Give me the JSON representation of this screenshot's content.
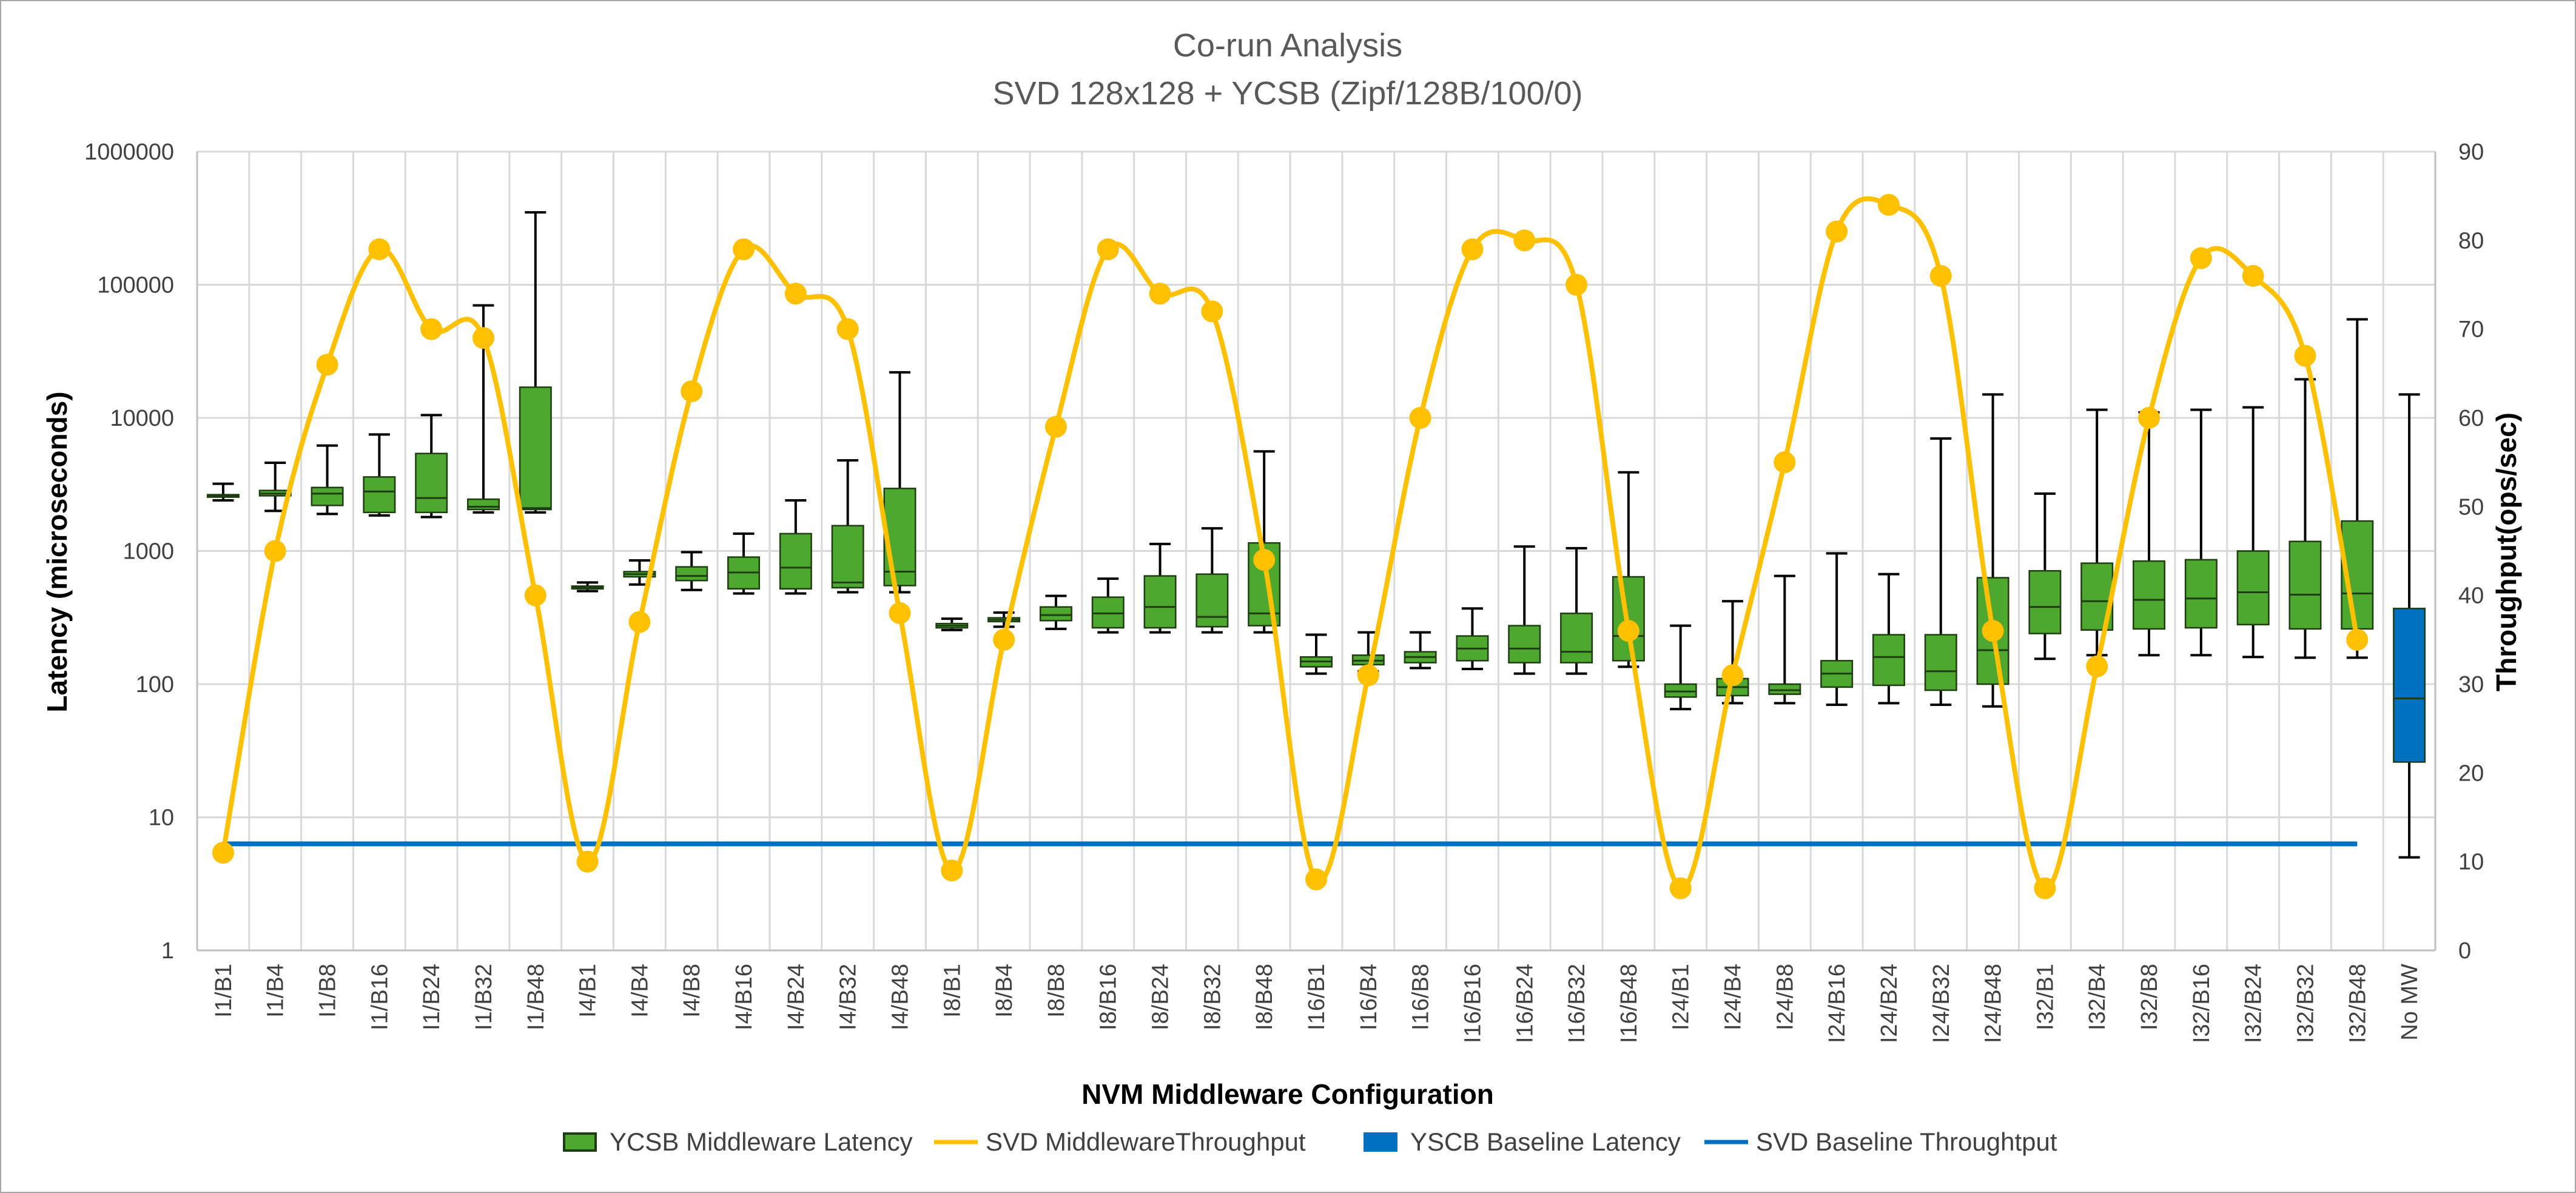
{
  "chart_data": {
    "type": "box+line",
    "title": "Co-run Analysis",
    "subtitle": "SVD 128x128 + YCSB (Zipf/128B/100/0)",
    "xlabel": "NVM Middleware Configuration",
    "ylabel_left": "Latency (microseconds)",
    "ylabel_right": "Throughput(ops/sec)",
    "y_left_scale": "log",
    "y_left_range": [
      1,
      1000000
    ],
    "y_left_ticks": [
      "1",
      "10",
      "100",
      "1000",
      "10000",
      "100000",
      "1000000"
    ],
    "y_right_range": [
      0,
      90
    ],
    "y_right_ticks": [
      "0",
      "10",
      "20",
      "30",
      "40",
      "50",
      "60",
      "70",
      "80",
      "90"
    ],
    "grid": true,
    "legend_position": "bottom",
    "colors": {
      "ycsb_box": "#4ea72e",
      "ycsb_box_border": "#1f3d12",
      "svd_line": "#ffc000",
      "baseline_box": "#0070c0",
      "baseline_line": "#0070c0",
      "grid": "#d9d9d9",
      "whisker": "#000000"
    },
    "categories": [
      "I1/B1",
      "I1/B4",
      "I1/B8",
      "I1/B16",
      "I1/B24",
      "I1/B32",
      "I1/B48",
      "I4/B1",
      "I4/B4",
      "I4/B8",
      "I4/B16",
      "I4/B24",
      "I4/B32",
      "I4/B48",
      "I8/B1",
      "I8/B4",
      "I8/B8",
      "I8/B16",
      "I8/B24",
      "I8/B32",
      "I8/B48",
      "I16/B1",
      "I16/B4",
      "I16/B8",
      "I16/B16",
      "I16/B24",
      "I16/B32",
      "I16/B48",
      "I24/B1",
      "I24/B4",
      "I24/B8",
      "I24/B16",
      "I24/B24",
      "I24/B32",
      "I24/B48",
      "I32/B1",
      "I32/B4",
      "I32/B8",
      "I32/B16",
      "I32/B24",
      "I32/B32",
      "I32/B48",
      "No MW"
    ],
    "legend": [
      {
        "name": "YCSB Middleware Latency",
        "kind": "box",
        "color": "#4ea72e"
      },
      {
        "name": "SVD MiddlewareThroughput",
        "kind": "line-marker",
        "color": "#ffc000"
      },
      {
        "name": "YSCB Baseline Latency",
        "kind": "box",
        "color": "#0070c0"
      },
      {
        "name": "SVD Baseline Throughtput",
        "kind": "line",
        "color": "#0070c0"
      }
    ],
    "ycsb_latency_boxes": [
      {
        "cat": "I1/B1",
        "min": 2400,
        "q1": 2550,
        "median": 2600,
        "q3": 2650,
        "max": 3200
      },
      {
        "cat": "I1/B4",
        "min": 2000,
        "q1": 2600,
        "median": 2700,
        "q3": 2850,
        "max": 4600
      },
      {
        "cat": "I1/B8",
        "min": 1900,
        "q1": 2200,
        "median": 2700,
        "q3": 3000,
        "max": 6200
      },
      {
        "cat": "I1/B16",
        "min": 1850,
        "q1": 1950,
        "median": 2800,
        "q3": 3600,
        "max": 7500
      },
      {
        "cat": "I1/B24",
        "min": 1800,
        "q1": 1950,
        "median": 2500,
        "q3": 5400,
        "max": 10500
      },
      {
        "cat": "I1/B32",
        "min": 1950,
        "q1": 2050,
        "median": 2150,
        "q3": 2450,
        "max": 70000
      },
      {
        "cat": "I1/B48",
        "min": 1950,
        "q1": 2050,
        "median": 2100,
        "q3": 17000,
        "max": 350000
      },
      {
        "cat": "I4/B1",
        "min": 500,
        "q1": 520,
        "median": 530,
        "q3": 545,
        "max": 580
      },
      {
        "cat": "I4/B4",
        "min": 560,
        "q1": 640,
        "median": 670,
        "q3": 700,
        "max": 850
      },
      {
        "cat": "I4/B8",
        "min": 510,
        "q1": 600,
        "median": 650,
        "q3": 760,
        "max": 980
      },
      {
        "cat": "I4/B16",
        "min": 480,
        "q1": 520,
        "median": 690,
        "q3": 900,
        "max": 1350
      },
      {
        "cat": "I4/B24",
        "min": 480,
        "q1": 520,
        "median": 750,
        "q3": 1350,
        "max": 2400
      },
      {
        "cat": "I4/B32",
        "min": 490,
        "q1": 530,
        "median": 580,
        "q3": 1550,
        "max": 4800
      },
      {
        "cat": "I4/B48",
        "min": 490,
        "q1": 550,
        "median": 700,
        "q3": 2950,
        "max": 22000
      },
      {
        "cat": "I8/B1",
        "min": 255,
        "q1": 265,
        "median": 275,
        "q3": 285,
        "max": 310
      },
      {
        "cat": "I8/B4",
        "min": 270,
        "q1": 295,
        "median": 305,
        "q3": 315,
        "max": 345
      },
      {
        "cat": "I8/B8",
        "min": 260,
        "q1": 300,
        "median": 330,
        "q3": 380,
        "max": 460
      },
      {
        "cat": "I8/B16",
        "min": 245,
        "q1": 265,
        "median": 340,
        "q3": 450,
        "max": 620
      },
      {
        "cat": "I8/B24",
        "min": 245,
        "q1": 265,
        "median": 380,
        "q3": 650,
        "max": 1130
      },
      {
        "cat": "I8/B32",
        "min": 245,
        "q1": 270,
        "median": 320,
        "q3": 670,
        "max": 1480
      },
      {
        "cat": "I8/B48",
        "min": 245,
        "q1": 275,
        "median": 340,
        "q3": 1150,
        "max": 5600
      },
      {
        "cat": "I16/B1",
        "min": 120,
        "q1": 135,
        "median": 148,
        "q3": 160,
        "max": 235
      },
      {
        "cat": "I16/B4",
        "min": 125,
        "q1": 140,
        "median": 150,
        "q3": 165,
        "max": 245
      },
      {
        "cat": "I16/B8",
        "min": 132,
        "q1": 145,
        "median": 160,
        "q3": 175,
        "max": 245
      },
      {
        "cat": "I16/B16",
        "min": 130,
        "q1": 150,
        "median": 185,
        "q3": 230,
        "max": 370
      },
      {
        "cat": "I16/B24",
        "min": 120,
        "q1": 145,
        "median": 185,
        "q3": 275,
        "max": 1080
      },
      {
        "cat": "I16/B32",
        "min": 120,
        "q1": 145,
        "median": 175,
        "q3": 340,
        "max": 1050
      },
      {
        "cat": "I16/B48",
        "min": 135,
        "q1": 150,
        "median": 230,
        "q3": 640,
        "max": 3900
      },
      {
        "cat": "I24/B1",
        "min": 65,
        "q1": 80,
        "median": 88,
        "q3": 100,
        "max": 275
      },
      {
        "cat": "I24/B4",
        "min": 72,
        "q1": 82,
        "median": 95,
        "q3": 110,
        "max": 420
      },
      {
        "cat": "I24/B8",
        "min": 72,
        "q1": 84,
        "median": 90,
        "q3": 100,
        "max": 650
      },
      {
        "cat": "I24/B16",
        "min": 70,
        "q1": 95,
        "median": 120,
        "q3": 150,
        "max": 960
      },
      {
        "cat": "I24/B24",
        "min": 72,
        "q1": 98,
        "median": 160,
        "q3": 235,
        "max": 670
      },
      {
        "cat": "I24/B32",
        "min": 70,
        "q1": 90,
        "median": 125,
        "q3": 235,
        "max": 7000
      },
      {
        "cat": "I24/B48",
        "min": 68,
        "q1": 100,
        "median": 180,
        "q3": 630,
        "max": 15000
      },
      {
        "cat": "I32/B1",
        "min": 155,
        "q1": 240,
        "median": 380,
        "q3": 710,
        "max": 2700
      },
      {
        "cat": "I32/B4",
        "min": 165,
        "q1": 255,
        "median": 420,
        "q3": 810,
        "max": 11500
      },
      {
        "cat": "I32/B8",
        "min": 165,
        "q1": 260,
        "median": 430,
        "q3": 840,
        "max": 11000
      },
      {
        "cat": "I32/B16",
        "min": 165,
        "q1": 265,
        "median": 440,
        "q3": 860,
        "max": 11500
      },
      {
        "cat": "I32/B24",
        "min": 160,
        "q1": 280,
        "median": 490,
        "q3": 1000,
        "max": 12000
      },
      {
        "cat": "I32/B32",
        "min": 158,
        "q1": 260,
        "median": 470,
        "q3": 1180,
        "max": 19500
      },
      {
        "cat": "I32/B48",
        "min": 158,
        "q1": 260,
        "median": 480,
        "q3": 1680,
        "max": 55000
      }
    ],
    "baseline_latency_box": {
      "cat": "No MW",
      "min": 5,
      "q1": 26,
      "median": 78,
      "q3": 370,
      "max": 15000
    },
    "svd_throughput": [
      11,
      45,
      66,
      79,
      70,
      69,
      40,
      10,
      37,
      63,
      79,
      74,
      70,
      38,
      9,
      35,
      59,
      79,
      74,
      72,
      44,
      8,
      31,
      60,
      79,
      80,
      75,
      36,
      7,
      31,
      55,
      81,
      84,
      76,
      36,
      7,
      32,
      60,
      78,
      76,
      67,
      35
    ],
    "svd_baseline_throughput": 12
  }
}
